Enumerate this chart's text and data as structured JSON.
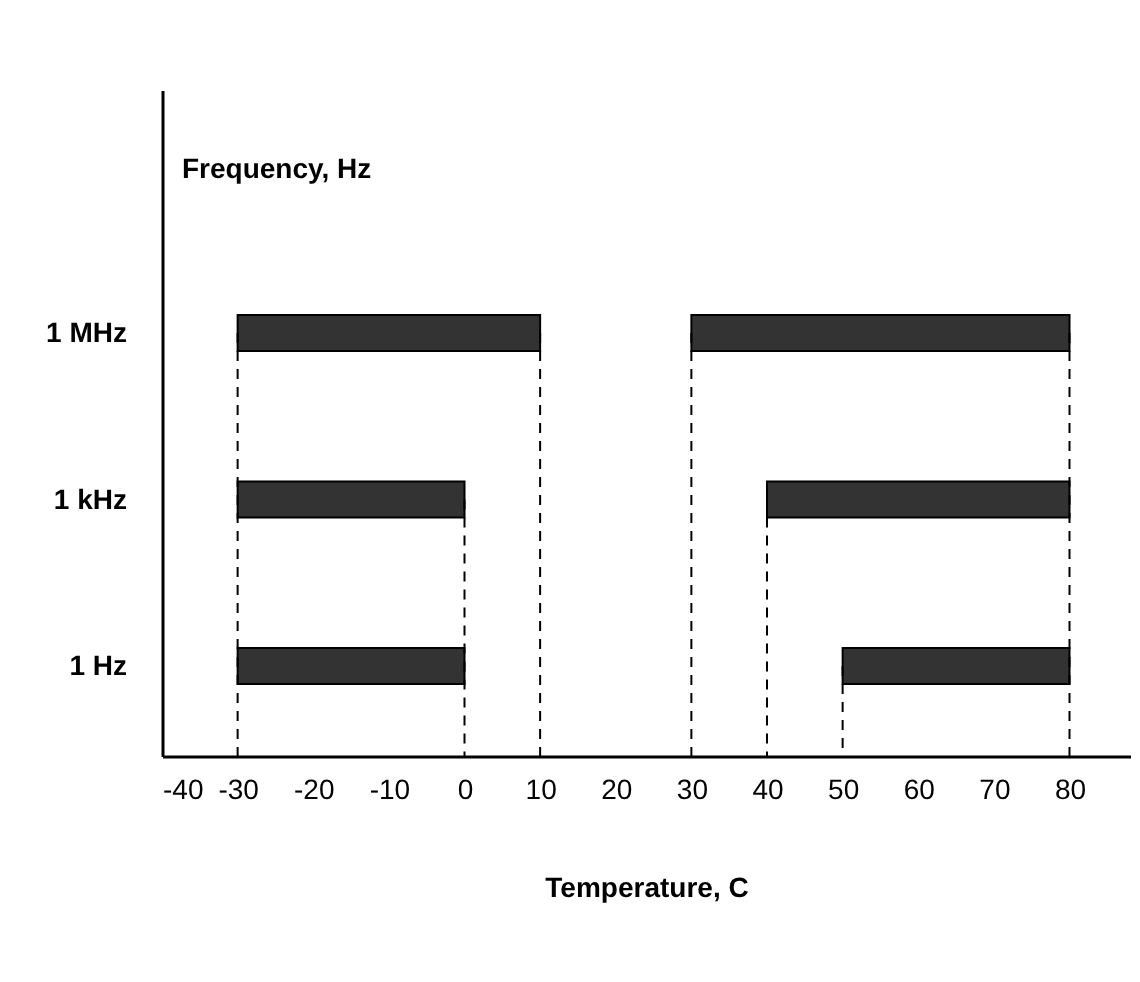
{
  "chart_data": {
    "type": "bar",
    "orientation": "horizontal",
    "categories": [
      "1 MHz",
      "1 kHz",
      "1 Hz"
    ],
    "series": [
      {
        "color": "#333333",
        "base": [
          -30,
          -30,
          -30
        ],
        "values": [
          40,
          30,
          30
        ]
      },
      {
        "color": "#333333",
        "base": [
          30,
          40,
          50
        ],
        "values": [
          50,
          40,
          30
        ]
      }
    ],
    "xlabel": "Temperature, C",
    "annotations": [
      "Frequency, Hz"
    ],
    "xlim": [
      -40,
      88
    ],
    "xticks": [
      -40,
      -30,
      -20,
      -10,
      0,
      10,
      20,
      30,
      40,
      50,
      60,
      70,
      80
    ],
    "ref_lines": [
      {
        "axis": "x",
        "value": -30,
        "line_style": "dashed"
      },
      {
        "axis": "x",
        "value": 0,
        "line_style": "dashed"
      },
      {
        "axis": "x",
        "value": 10,
        "line_style": "dashed"
      },
      {
        "axis": "x",
        "value": 30,
        "line_style": "dashed"
      },
      {
        "axis": "x",
        "value": 40,
        "line_style": "dashed"
      },
      {
        "axis": "x",
        "value": 50,
        "line_style": "dashed"
      },
      {
        "axis": "x",
        "value": 80,
        "line_style": "dashed"
      }
    ],
    "grid": false,
    "legend": false
  }
}
